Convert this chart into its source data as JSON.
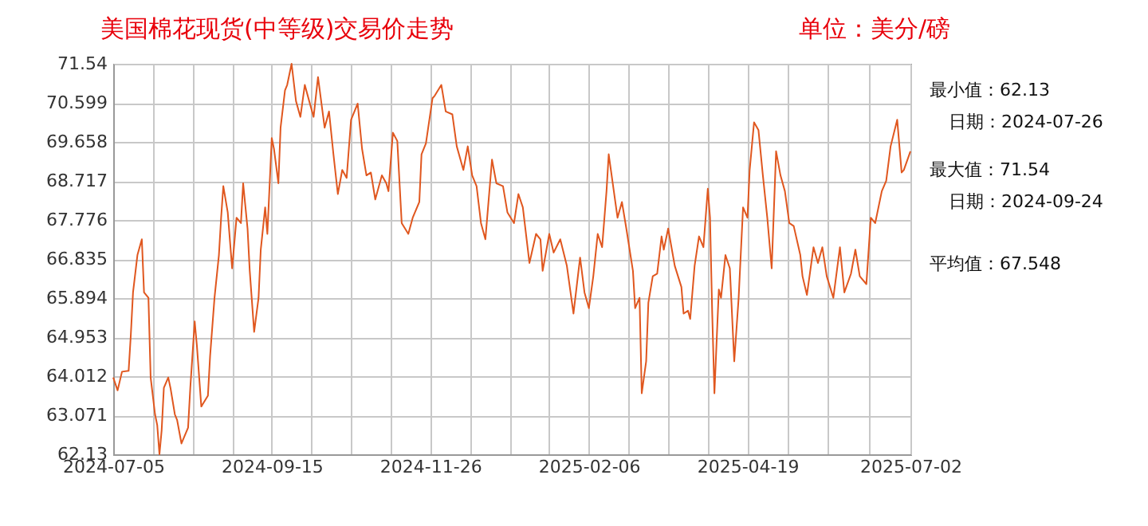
{
  "chart_data": {
    "type": "line",
    "title": "美国棉花现货(中等级)交易价走势",
    "subtitle": "单位：美分/磅",
    "annotations": [
      "最小值：62.13",
      "日期：2024-07-26",
      "最大值：71.54",
      "日期：2024-09-24",
      "平均值：67.548"
    ],
    "x": [
      "2024-07-05",
      "2024-07-07",
      "2024-07-09",
      "2024-07-12",
      "2024-07-13",
      "2024-07-14",
      "2024-07-16",
      "2024-07-18",
      "2024-07-19",
      "2024-07-21",
      "2024-07-22",
      "2024-07-24",
      "2024-07-25",
      "2024-07-26",
      "2024-07-27",
      "2024-07-28",
      "2024-07-30",
      "2024-07-31",
      "2024-08-02",
      "2024-08-03",
      "2024-08-05",
      "2024-08-08",
      "2024-08-09",
      "2024-08-11",
      "2024-08-12",
      "2024-08-14",
      "2024-08-17",
      "2024-08-18",
      "2024-08-20",
      "2024-08-22",
      "2024-08-23",
      "2024-08-24",
      "2024-08-26",
      "2024-08-28",
      "2024-08-30",
      "2024-09-01",
      "2024-09-02",
      "2024-09-04",
      "2024-09-05",
      "2024-09-07",
      "2024-09-09",
      "2024-09-10",
      "2024-09-12",
      "2024-09-13",
      "2024-09-15",
      "2024-09-16",
      "2024-09-18",
      "2024-09-19",
      "2024-09-21",
      "2024-09-22",
      "2024-09-24",
      "2024-09-26",
      "2024-09-28",
      "2024-09-30",
      "2024-10-02",
      "2024-10-04",
      "2024-10-06",
      "2024-10-09",
      "2024-10-11",
      "2024-10-13",
      "2024-10-15",
      "2024-10-17",
      "2024-10-19",
      "2024-10-21",
      "2024-10-24",
      "2024-10-26",
      "2024-10-28",
      "2024-10-30",
      "2024-11-01",
      "2024-11-04",
      "2024-11-06",
      "2024-11-07",
      "2024-11-09",
      "2024-11-11",
      "2024-11-13",
      "2024-11-16",
      "2024-11-18",
      "2024-11-21",
      "2024-11-22",
      "2024-11-24",
      "2024-11-27",
      "2024-11-28",
      "2024-12-01",
      "2024-12-03",
      "2024-12-06",
      "2024-12-08",
      "2024-12-11",
      "2024-12-13",
      "2024-12-15",
      "2024-12-17",
      "2024-12-19",
      "2024-12-21",
      "2024-12-24",
      "2024-12-26",
      "2024-12-29",
      "2024-12-31",
      "2025-01-03",
      "2025-01-05",
      "2025-01-07",
      "2025-01-10",
      "2025-01-13",
      "2025-01-15",
      "2025-01-16",
      "2025-01-19",
      "2025-01-21",
      "2025-01-24",
      "2025-01-27",
      "2025-01-30",
      "2025-02-02",
      "2025-02-04",
      "2025-02-06",
      "2025-02-08",
      "2025-02-10",
      "2025-02-12",
      "2025-02-14",
      "2025-02-15",
      "2025-02-19",
      "2025-02-21",
      "2025-02-23",
      "2025-02-26",
      "2025-02-27",
      "2025-03-01",
      "2025-03-02",
      "2025-03-04",
      "2025-03-05",
      "2025-03-07",
      "2025-03-09",
      "2025-03-11",
      "2025-03-12",
      "2025-03-14",
      "2025-03-17",
      "2025-03-20",
      "2025-03-21",
      "2025-03-23",
      "2025-03-24",
      "2025-03-26",
      "2025-03-28",
      "2025-03-30",
      "2025-04-01",
      "2025-04-02",
      "2025-04-03",
      "2025-04-04",
      "2025-04-06",
      "2025-04-07",
      "2025-04-09",
      "2025-04-11",
      "2025-04-13",
      "2025-04-15",
      "2025-04-17",
      "2025-04-19",
      "2025-04-20",
      "2025-04-22",
      "2025-04-24",
      "2025-04-26",
      "2025-04-28",
      "2025-04-30",
      "2025-05-02",
      "2025-05-04",
      "2025-05-06",
      "2025-05-08",
      "2025-05-10",
      "2025-05-13",
      "2025-05-14",
      "2025-05-16",
      "2025-05-19",
      "2025-05-21",
      "2025-05-23",
      "2025-05-25",
      "2025-05-28",
      "2025-05-31",
      "2025-06-02",
      "2025-06-05",
      "2025-06-07",
      "2025-06-09",
      "2025-06-12",
      "2025-06-14",
      "2025-06-16",
      "2025-06-19",
      "2025-06-21",
      "2025-06-23",
      "2025-06-26",
      "2025-06-28",
      "2025-06-29",
      "2025-07-02"
    ],
    "series": [
      {
        "color": "#e0571f",
        "values": [
          63.98,
          63.67,
          64.12,
          64.14,
          65.01,
          66.03,
          66.93,
          67.31,
          66.03,
          65.9,
          63.98,
          63.09,
          62.83,
          62.13,
          62.71,
          63.73,
          63.98,
          63.73,
          63.09,
          62.96,
          62.39,
          62.77,
          63.73,
          65.33,
          64.75,
          63.28,
          63.54,
          64.5,
          65.9,
          66.93,
          67.83,
          68.59,
          67.96,
          66.61,
          67.83,
          67.7,
          68.66,
          67.57,
          66.55,
          65.08,
          65.9,
          67.06,
          68.08,
          67.44,
          69.75,
          69.49,
          68.66,
          70.0,
          70.9,
          71.03,
          71.54,
          70.64,
          70.26,
          71.03,
          70.64,
          70.26,
          71.22,
          70.0,
          70.39,
          69.36,
          68.4,
          68.98,
          68.79,
          70.19,
          70.58,
          69.49,
          68.85,
          68.92,
          68.27,
          68.85,
          68.66,
          68.47,
          69.88,
          69.68,
          67.7,
          67.44,
          67.83,
          68.21,
          69.36,
          69.62,
          70.71,
          70.77,
          71.03,
          70.39,
          70.32,
          69.55,
          68.98,
          69.55,
          68.85,
          68.59,
          67.7,
          67.31,
          69.23,
          68.66,
          68.59,
          67.96,
          67.7,
          68.4,
          68.08,
          66.74,
          67.44,
          67.31,
          66.55,
          67.44,
          66.99,
          67.31,
          66.67,
          65.52,
          66.87,
          66.03,
          65.65,
          66.42,
          67.44,
          67.12,
          68.47,
          69.36,
          67.83,
          68.21,
          67.57,
          66.55,
          65.65,
          65.9,
          63.6,
          64.37,
          65.78,
          66.42,
          66.48,
          67.38,
          67.06,
          67.57,
          66.67,
          66.16,
          65.52,
          65.59,
          65.39,
          66.67,
          67.38,
          67.12,
          68.53,
          67.83,
          65.52,
          63.6,
          66.1,
          65.9,
          66.93,
          66.61,
          64.37,
          65.9,
          68.08,
          67.83,
          68.98,
          70.13,
          69.94,
          68.85,
          67.83,
          66.61,
          69.43,
          68.85,
          68.47,
          67.7,
          67.63,
          66.93,
          66.42,
          65.97,
          67.12,
          66.74,
          67.12,
          66.42,
          65.9,
          67.12,
          66.03,
          66.48,
          67.06,
          66.42,
          66.23,
          67.83,
          67.7,
          68.47,
          68.72,
          69.55,
          70.19,
          68.92,
          68.98,
          69.43
        ]
      }
    ],
    "xlim": [
      "2024-07-05",
      "2025-07-02"
    ],
    "xticks": [
      {
        "value": "2024-07-05",
        "label": "2024-07-05"
      },
      {
        "value": "2024-07-23",
        "label": null
      },
      {
        "value": "2024-08-10",
        "label": null
      },
      {
        "value": "2024-08-28",
        "label": null
      },
      {
        "value": "2024-09-15",
        "label": "2024-09-15"
      },
      {
        "value": "2024-10-03",
        "label": null
      },
      {
        "value": "2024-10-21",
        "label": null
      },
      {
        "value": "2024-11-08",
        "label": null
      },
      {
        "value": "2024-11-26",
        "label": "2024-11-26"
      },
      {
        "value": "2024-12-14",
        "label": null
      },
      {
        "value": "2025-01-01",
        "label": null
      },
      {
        "value": "2025-01-19",
        "label": null
      },
      {
        "value": "2025-02-06",
        "label": "2025-02-06"
      },
      {
        "value": "2025-02-24",
        "label": null
      },
      {
        "value": "2025-03-14",
        "label": null
      },
      {
        "value": "2025-04-01",
        "label": null
      },
      {
        "value": "2025-04-19",
        "label": "2025-04-19"
      },
      {
        "value": "2025-05-07",
        "label": null
      },
      {
        "value": "2025-05-25",
        "label": null
      },
      {
        "value": "2025-06-13",
        "label": null
      },
      {
        "value": "2025-07-02",
        "label": "2025-07-02"
      }
    ],
    "ylim": [
      62.13,
      71.54
    ],
    "yticks": [
      62.13,
      63.071,
      64.012,
      64.953,
      65.894,
      66.835,
      67.776,
      68.717,
      69.658,
      70.599,
      71.54
    ],
    "grid": true,
    "marker": "none",
    "line_style": "solid"
  }
}
